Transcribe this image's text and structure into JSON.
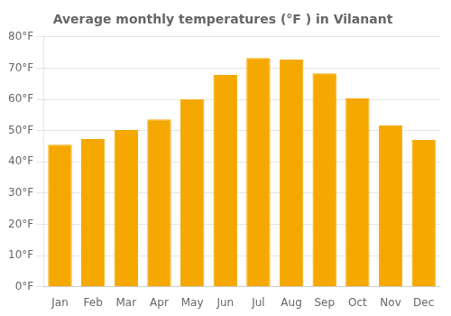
{
  "chart_data": {
    "type": "bar",
    "title": "Average monthly temperatures (°F ) in Vilanant",
    "categories": [
      "Jan",
      "Feb",
      "Mar",
      "Apr",
      "May",
      "Jun",
      "Jul",
      "Aug",
      "Sep",
      "Oct",
      "Nov",
      "Dec"
    ],
    "values": [
      45.5,
      47.3,
      50.2,
      53.6,
      60.1,
      67.8,
      73.2,
      72.7,
      68.3,
      60.3,
      51.6,
      47.0
    ],
    "color": "#F5A800",
    "ylim": [
      0,
      80
    ],
    "yticks": [
      {
        "value": 0,
        "label": "0°F"
      },
      {
        "value": 10,
        "label": "10°F"
      },
      {
        "value": 20,
        "label": "20°F"
      },
      {
        "value": 30,
        "label": "30°F"
      },
      {
        "value": 40,
        "label": "40°F"
      },
      {
        "value": 50,
        "label": "50°F"
      },
      {
        "value": 60,
        "label": "60°F"
      },
      {
        "value": 70,
        "label": "70°F"
      },
      {
        "value": 80,
        "label": "80°F"
      }
    ],
    "grid": true
  }
}
